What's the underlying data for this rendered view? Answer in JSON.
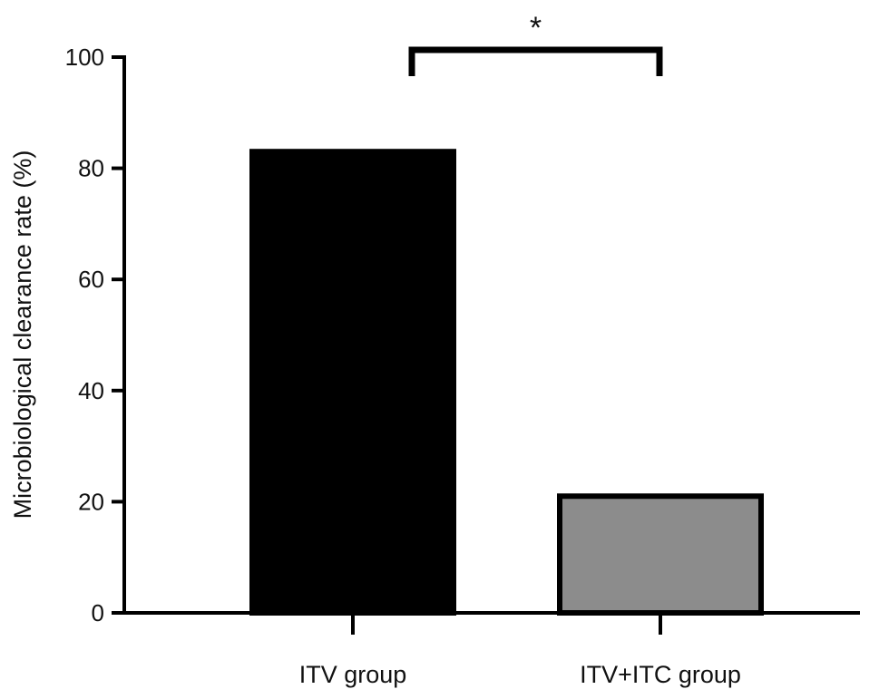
{
  "chart_data": {
    "type": "bar",
    "categories": [
      "ITV group",
      "ITV+ITC group"
    ],
    "values": [
      83,
      21
    ],
    "ylabel": "Microbiological clearance rate (%)",
    "xlabel": "",
    "ylim": [
      0,
      100
    ],
    "yticks": [
      0,
      20,
      40,
      60,
      80,
      100
    ],
    "ytick_labels": [
      "0",
      "20",
      "40",
      "60",
      "80",
      "100"
    ],
    "bar_colors": [
      "#000000",
      "#8c8c8c"
    ],
    "bar_outline": "#000000",
    "grid": false,
    "legend": "none",
    "annotations": [
      {
        "type": "significance-bracket",
        "from": "ITV group",
        "to": "ITV+ITC group",
        "label": "*"
      }
    ]
  }
}
